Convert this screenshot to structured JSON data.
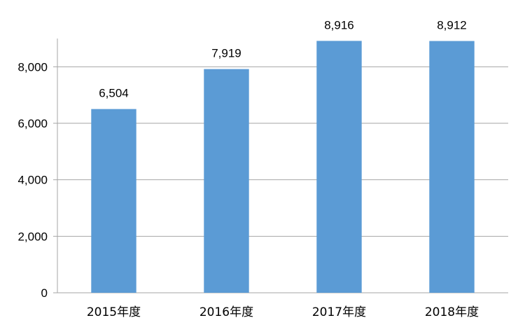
{
  "chart_data": {
    "type": "bar",
    "categories": [
      "2015年度",
      "2016年度",
      "2017年度",
      "2018年度"
    ],
    "values": [
      6504,
      7919,
      8916,
      8912
    ],
    "data_labels": [
      "6,504",
      "7,919",
      "8,916",
      "8,912"
    ],
    "y_ticks": [
      "0",
      "2,000",
      "4,000",
      "6,000",
      "8,000"
    ],
    "ylim": [
      0,
      9000
    ],
    "grid": true,
    "colors": {
      "bar": "#5b9bd5",
      "grid": "#a6a6a6",
      "axis": "#a6a6a6"
    }
  }
}
